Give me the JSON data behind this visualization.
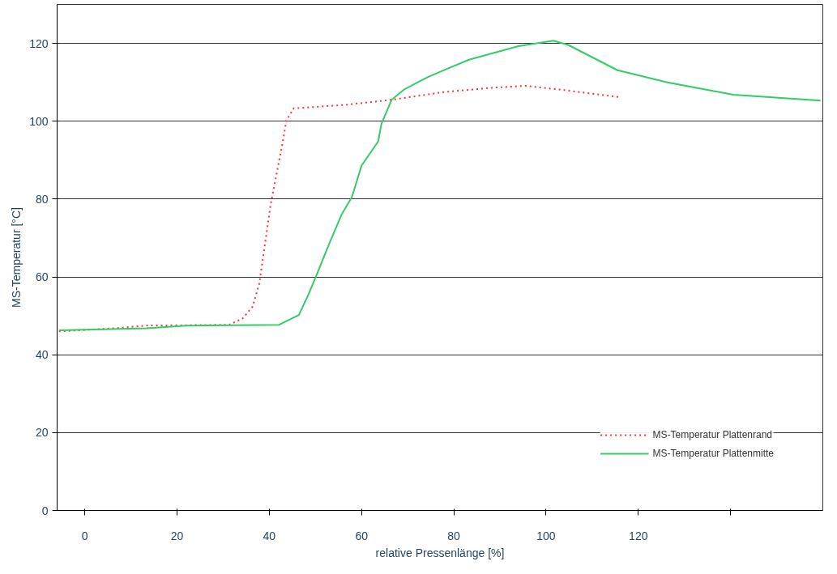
{
  "chart_data": {
    "type": "line",
    "xlabel": "relative Pressenlänge [%]",
    "ylabel": "MS-Temperatur [°C]",
    "xlim": [
      -6,
      160
    ],
    "xticks": [
      0,
      20,
      40,
      60,
      80,
      100,
      120,
      {
        "value": 140,
        "label": null
      }
    ],
    "ylim": [
      0,
      130
    ],
    "yticks": [
      0,
      20,
      40,
      60,
      80,
      100,
      120
    ],
    "grid": "y",
    "legend": "bottom right",
    "series": [
      {
        "name": "MS-Temperatur Plattenrand",
        "color": "#ff3333",
        "line_style": "dotted",
        "x": [
          -5.6,
          6.3,
          13.4,
          31.3,
          34.2,
          36.4,
          37.8,
          38.9,
          40.3,
          41.4,
          42.8,
          43.7,
          45.3,
          56.4,
          66.5,
          77.9,
          88.3,
          95.5,
          104,
          115.9
        ],
        "values": [
          46,
          46.8,
          47.5,
          47.7,
          49.3,
          52.4,
          58.2,
          67.1,
          78.7,
          85.4,
          93.9,
          100.2,
          103.3,
          104.2,
          105.5,
          107.5,
          108.6,
          109.1,
          108,
          106.2
        ]
      },
      {
        "name": "MS-Temperatur Plattenmitte",
        "color": "#33cc66",
        "line_style": "solid",
        "x": [
          -5.6,
          13.4,
          22,
          42.1,
          46.4,
          48.5,
          50.7,
          52.8,
          55.7,
          57.9,
          60,
          63.6,
          64.3,
          66.5,
          69.3,
          74.3,
          78.6,
          83.3,
          94,
          101.6,
          104.8,
          115.5,
          126.3,
          140.6,
          159.5
        ],
        "values": [
          46.3,
          46.8,
          47.5,
          47.7,
          50.2,
          55.5,
          61.8,
          68,
          76.1,
          80.5,
          88.6,
          94.8,
          99.3,
          105.5,
          108.2,
          111.3,
          113.5,
          115.8,
          119.3,
          120.7,
          119.6,
          113.1,
          110,
          106.8,
          105.3
        ]
      }
    ]
  }
}
